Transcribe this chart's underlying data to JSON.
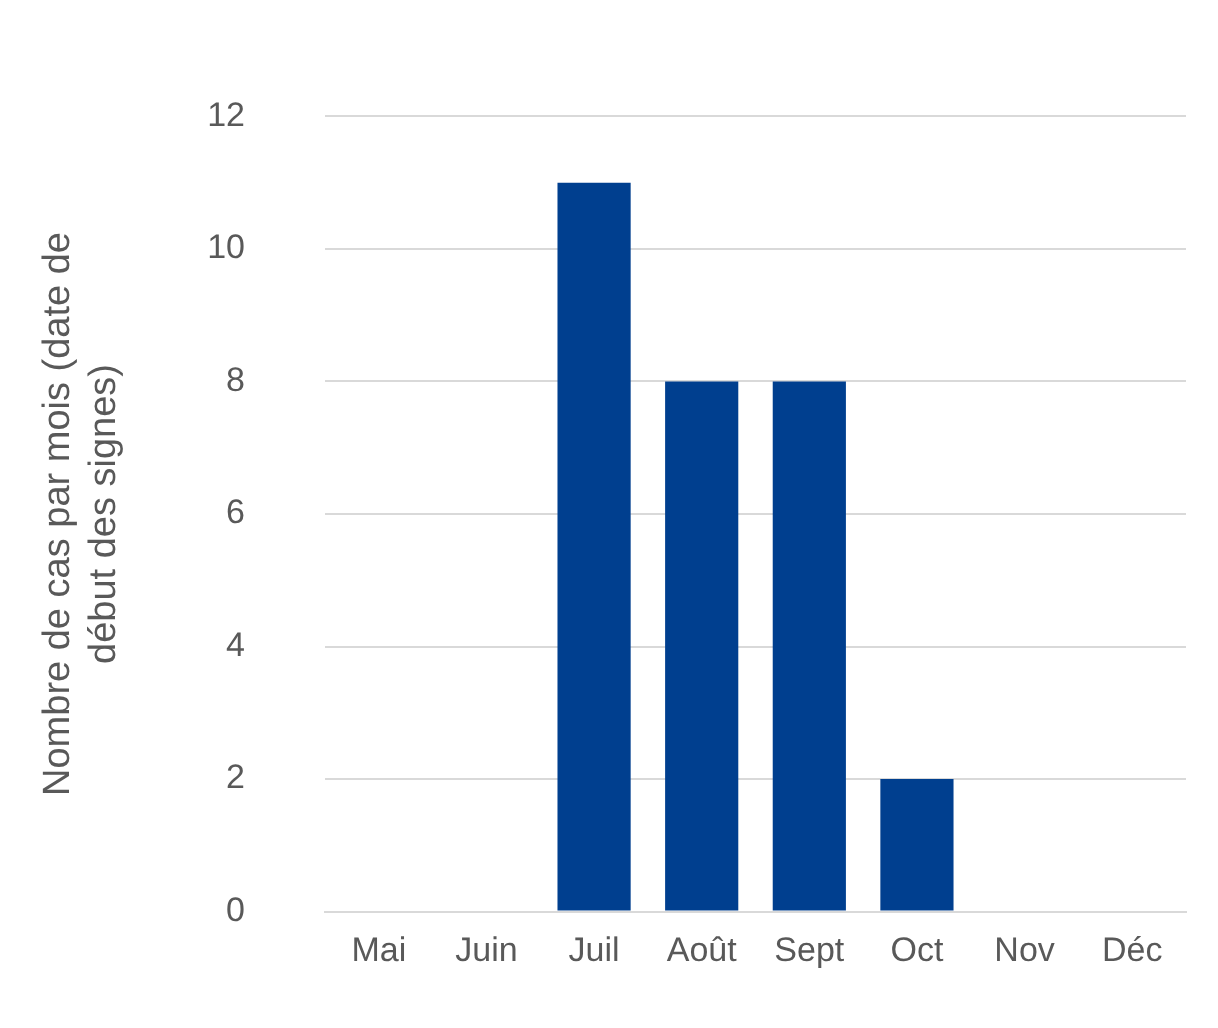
{
  "chart_data": {
    "type": "bar",
    "ylabel": "Nombre de cas par mois (date de début des signes)",
    "categories": [
      "Mai",
      "Juin",
      "Juil",
      "Août",
      "Sept",
      "Oct",
      "Nov",
      "Déc"
    ],
    "values": [
      0,
      0,
      11,
      8,
      8,
      2,
      0,
      0
    ],
    "color": "#003f8f",
    "ylim": [
      0,
      12
    ],
    "yticks": [
      0,
      2,
      4,
      6,
      8,
      10,
      12
    ],
    "grid": "y",
    "legend": false
  }
}
